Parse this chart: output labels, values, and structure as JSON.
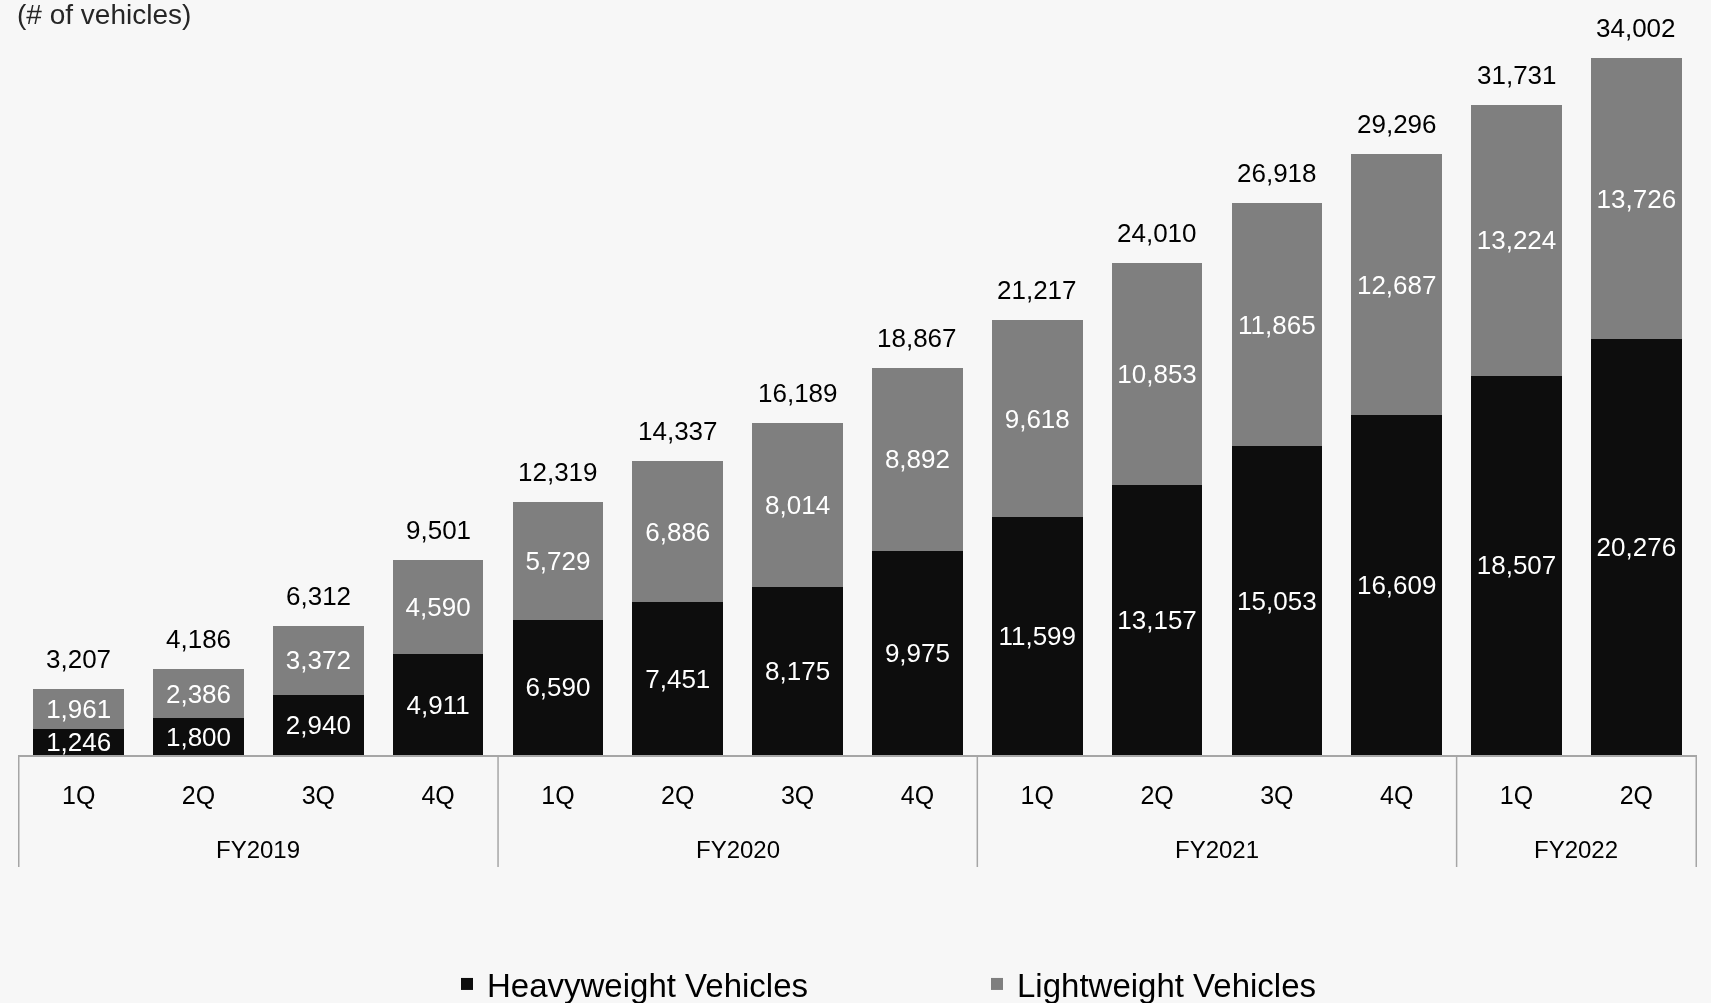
{
  "chart_data": {
    "type": "bar",
    "ylabel": "(# of vehicles)",
    "categories": [
      "1Q",
      "2Q",
      "3Q",
      "4Q",
      "1Q",
      "2Q",
      "3Q",
      "4Q",
      "1Q",
      "2Q",
      "3Q",
      "4Q",
      "1Q",
      "2Q"
    ],
    "series": [
      {
        "name": "Heavyweight Vehicles",
        "color": "#0d0d0d",
        "values": [
          1246,
          1800,
          2940,
          4911,
          6590,
          7451,
          8175,
          9975,
          11599,
          13157,
          15053,
          16609,
          18507,
          20276
        ],
        "value_labels": [
          "1,246",
          "1,800",
          "2,940",
          "4,911",
          "6,590",
          "7,451",
          "8,175",
          "9,975",
          "11,599",
          "13,157",
          "15,053",
          "16,609",
          "18,507",
          "20,276"
        ]
      },
      {
        "name": "Lightweight Vehicles",
        "color": "#7f7f7f",
        "values": [
          1961,
          2386,
          3372,
          4590,
          5729,
          6886,
          8014,
          8892,
          9618,
          10853,
          11865,
          12687,
          13224,
          13726
        ],
        "value_labels": [
          "1,961",
          "2,386",
          "3,372",
          "4,590",
          "5,729",
          "6,886",
          "8,014",
          "8,892",
          "9,618",
          "10,853",
          "11,865",
          "12,687",
          "13,224",
          "13,726"
        ]
      }
    ],
    "stacked": true,
    "totals": [
      "3,207",
      "4,186",
      "6,312",
      "9,501",
      "12,319",
      "14,337",
      "16,189",
      "18,867",
      "21,217",
      "24,010",
      "26,918",
      "29,296",
      "31,731",
      "34,002"
    ],
    "annotations": [
      "FY2019",
      "FY2020",
      "FY2021",
      "FY2022"
    ],
    "legend": "bottom",
    "grid": false,
    "tick_labels": "x"
  }
}
